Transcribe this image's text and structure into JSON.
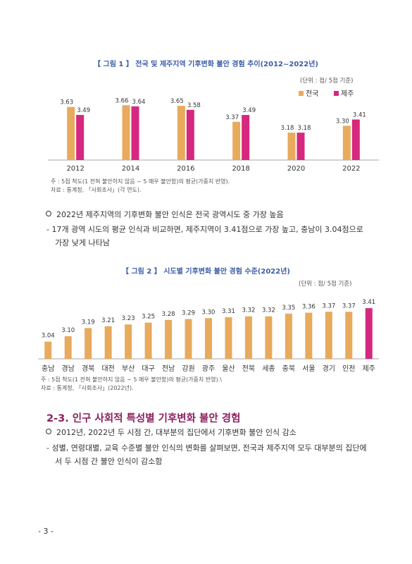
{
  "colors": {
    "national": "#e8aa5c",
    "jeju": "#d6287e",
    "title_blue": "#3a5da8",
    "section": "#8c1f5f"
  },
  "figure1": {
    "title": "【 그림 1 】 전국 및 제주지역 기후변화 불안 경험 추이(2012~2022년)",
    "unit": "(단위 : 점/ 5점 기준)",
    "note1": "주 : 5점 척도(1 전혀 불안하지 않음 ~ 5 매우 불안함)의 평균(가중치 반영).",
    "note2": "자료 : 통계청, 「사회조사」(각 연도)."
  },
  "figure2": {
    "title": "【 그림 2 】 시도별 기후변화 불안 경험 수준(2022년)",
    "unit": "(단위 : 점/ 5점 기준)",
    "note1": "주 : 5점 척도(1 전혀 불안하지 않음 ~ 5 매우 불안함)의 평균(가중치 반영).\\",
    "note2": "자료 : 통계청, 「사회조사」(2022년)."
  },
  "chart_data": [
    {
      "type": "bar",
      "categories": [
        "2012",
        "2014",
        "2016",
        "2018",
        "2020",
        "2022"
      ],
      "series": [
        {
          "name": "전국",
          "values": [
            3.63,
            3.66,
            3.65,
            3.37,
            3.18,
            3.3
          ]
        },
        {
          "name": "제주",
          "values": [
            3.49,
            3.64,
            3.58,
            3.49,
            3.18,
            3.41
          ]
        }
      ],
      "title": "【 그림 1 】 전국 및 제주지역 기후변화 불안 경험 추이(2012~2022년)",
      "ylim": [
        2.7,
        3.75
      ],
      "legend": "top-right",
      "grid": false
    },
    {
      "type": "bar",
      "categories": [
        "충남",
        "경남",
        "경북",
        "대전",
        "부산",
        "대구",
        "전남",
        "강원",
        "광주",
        "울산",
        "전북",
        "세종",
        "충북",
        "서울",
        "경기",
        "인천",
        "제주"
      ],
      "values": [
        3.04,
        3.1,
        3.19,
        3.21,
        3.23,
        3.25,
        3.28,
        3.29,
        3.3,
        3.31,
        3.32,
        3.32,
        3.35,
        3.36,
        3.37,
        3.37,
        3.41
      ],
      "value_labels": [
        "3.04",
        "3.10",
        "3.19",
        "3.21",
        "3.23",
        "3.25",
        "3.28",
        "3.29",
        "3.30",
        "3.31",
        "3.32",
        "3.32",
        "3.35",
        "3.36",
        "3.37",
        "3.37",
        "3.41"
      ],
      "highlight": "제주",
      "title": "【 그림 2 】 시도별 기후변화 불안 경험 수준(2022년)",
      "ylim": [
        2.85,
        3.45
      ],
      "grid": false
    }
  ],
  "text1": {
    "bullet": "2022년 제주지역의 기후변화 불안 인식은 전국 광역시도 중 가장 높음",
    "dash_line1": "- 17개 광역 시도의 평균 인식과 비교하면, 제주지역이 3.41점으로 가장 높고, 충남이 3.04점으로",
    "dash_line2": "가장 낮게 나타남"
  },
  "section": {
    "title": "2-3. 인구 사회적 특성별 기후변화 불안 경험",
    "bullet": "2012년, 2022년 두 시점 간, 대부분의 집단에서 기후변화 불안 인식 감소",
    "dash_line1": "- 성별, 연령대별, 교육 수준별 불안 인식의 변화를 살펴보면, 전국과 제주지역 모두 대부분의 집단에",
    "dash_line2": "서 두 시점 간 불안 인식이 감소함"
  },
  "page_number": "- 3 -"
}
